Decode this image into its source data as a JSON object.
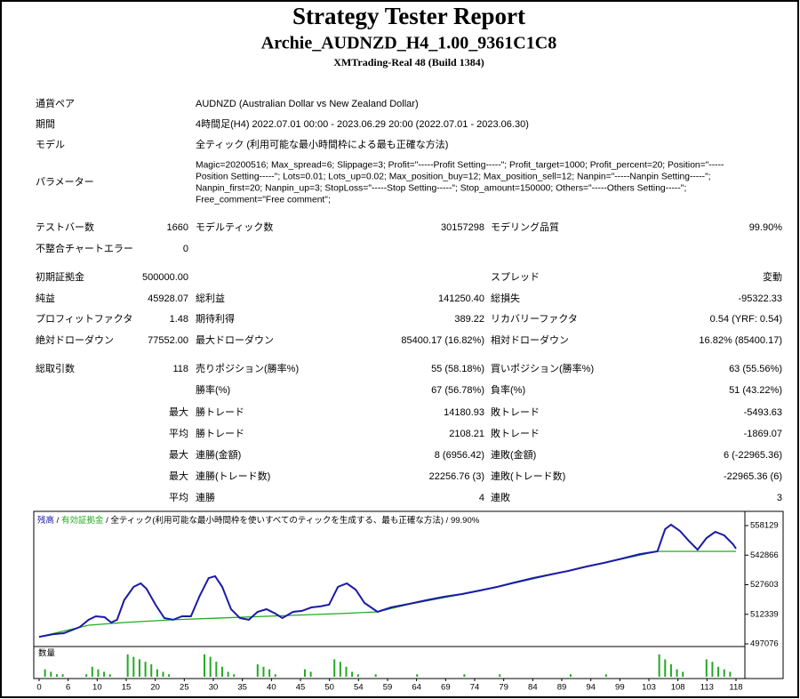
{
  "header": {
    "title": "Strategy Tester Report",
    "subtitle": "Archie_AUDNZD_H4_1.00_9361C1C8",
    "server": "XMTrading-Real 48 (Build 1384)"
  },
  "general": [
    {
      "label": "通貨ペア",
      "value": "AUDNZD (Australian Dollar vs New Zealand Dollar)"
    },
    {
      "label": "期間",
      "value": "4時間足(H4) 2022.07.01 00:00 - 2023.06.29 20:00 (2022.07.01 - 2023.06.30)"
    },
    {
      "label": "モデル",
      "value": "全ティック (利用可能な最小時間枠による最も正確な方法)"
    }
  ],
  "parameters": {
    "label": "パラメーター",
    "lines": [
      "Magic=20200516; Max_spread=6; Slippage=3; Profit=\"-----Profit Setting-----\"; Profit_target=1000; Profit_percent=20; Position=\"-----",
      "Position Setting-----\"; Lots=0.01; Lots_up=0.02; Max_position_buy=12; Max_position_sell=12; Nanpin=\"-----Nanpin Setting-----\";",
      "Nanpin_first=20; Nanpin_up=3; StopLoss=\"-----Stop Setting-----\"; Stop_amount=150000; Others=\"-----Others Setting-----\";",
      "Free_comment=\"Free comment\";"
    ]
  },
  "stats": {
    "rows": [
      {
        "c1": {
          "label": "テストバー数",
          "value": "1660"
        },
        "c2": {
          "label": "モデルティック数",
          "value": "30157298"
        },
        "c3": {
          "label": "モデリング品質",
          "value": "99.90%"
        }
      },
      {
        "c1": {
          "label": "不整合チャートエラー",
          "value": "0"
        }
      },
      {
        "c1": {
          "label": "初期証拠金",
          "value": "500000.00"
        },
        "c3": {
          "label": "スプレッド",
          "value": "変動"
        }
      },
      {
        "c1": {
          "label": "純益",
          "value": "45928.07"
        },
        "c2": {
          "label": "総利益",
          "value": "141250.40"
        },
        "c3": {
          "label": "総損失",
          "value": "-95322.33"
        }
      },
      {
        "c1": {
          "label": "プロフィットファクタ",
          "value": "1.48"
        },
        "c2": {
          "label": "期待利得",
          "value": "389.22"
        },
        "c3": {
          "label": "リカバリーファクタ",
          "value": "0.54 (YRF: 0.54)"
        }
      },
      {
        "c1": {
          "label": "絶対ドローダウン",
          "value": "77552.00"
        },
        "c2": {
          "label": "最大ドローダウン",
          "value": "85400.17 (16.82%)"
        },
        "c3": {
          "label": "相対ドローダウン",
          "value": "16.82% (85400.17)"
        }
      },
      {
        "c1": {
          "label": "総取引数",
          "value": "118"
        },
        "c2": {
          "label": "売りポジション(勝率%)",
          "value": "55 (58.18%)"
        },
        "c3": {
          "label": "買いポジション(勝率%)",
          "value": "63 (55.56%)"
        }
      },
      {
        "c2": {
          "label": "勝率(%)",
          "value": "67 (56.78%)"
        },
        "c3": {
          "label": "負率(%)",
          "value": "51 (43.22%)"
        }
      },
      {
        "c1": {
          "label": "最大"
        },
        "c2": {
          "label": "勝トレード",
          "value": "14180.93"
        },
        "c3": {
          "label": "敗トレード",
          "value": "-5493.63"
        }
      },
      {
        "c1": {
          "label": "平均"
        },
        "c2": {
          "label": "勝トレード",
          "value": "2108.21"
        },
        "c3": {
          "label": "敗トレード",
          "value": "-1869.07"
        }
      },
      {
        "c1": {
          "label": "最大"
        },
        "c2": {
          "label": "連勝(金額)",
          "value": "8 (6956.42)"
        },
        "c3": {
          "label": "連敗(金額)",
          "value": "6 (-22965.36)"
        }
      },
      {
        "c1": {
          "label": "最大"
        },
        "c2": {
          "label": "連勝(トレード数)",
          "value": "22256.76 (3)"
        },
        "c3": {
          "label": "連敗(トレード数)",
          "value": "-22965.36 (6)"
        }
      },
      {
        "c1": {
          "label": "平均"
        },
        "c2": {
          "label": "連勝",
          "value": "4"
        },
        "c3": {
          "label": "連敗",
          "value": "3"
        }
      }
    ]
  },
  "chart_data": {
    "type": "line",
    "separator": "/",
    "mode": "全ティック(利用可能な最小時間枠を使いすべてのティックを生成する、最も正確な方法)",
    "quality": "99.90%",
    "xlim": [
      0,
      118
    ],
    "ylim": [
      497076,
      564100
    ],
    "yticks": [
      558129,
      542866,
      527603,
      512339,
      497076
    ],
    "x_labels": [
      0,
      6,
      10,
      15,
      20,
      25,
      30,
      35,
      40,
      45,
      50,
      54,
      59,
      64,
      69,
      74,
      79,
      84,
      89,
      94,
      99,
      103,
      108,
      113,
      118
    ],
    "series": [
      {
        "name": "残高",
        "color": "#1a1aa6",
        "x": [
          0,
          2.4,
          4.2,
          6.9,
          8.4,
          9.6,
          11.1,
          12.2,
          13.2,
          14.4,
          16,
          17.2,
          18.2,
          19.7,
          21.2,
          22.7,
          24.2,
          25.7,
          27.2,
          28.7,
          29.8,
          31,
          32.5,
          34,
          35.5,
          37,
          38.5,
          40,
          41.2,
          43,
          44.5,
          46.1,
          47.6,
          49.1,
          50.6,
          52.1,
          53.6,
          55.1,
          57.3,
          59.6,
          62.6,
          65.6,
          68.6,
          71.6,
          74.6,
          77.6,
          80.6,
          83.6,
          86.6,
          89.6,
          92.7,
          95.7,
          98.7,
          101.7,
          104.7,
          106,
          107,
          108.5,
          110,
          111.5,
          113,
          114.5,
          116,
          117.5,
          118
        ],
        "values": [
          500700,
          502100,
          502600,
          505800,
          509500,
          511300,
          510850,
          508100,
          509500,
          519600,
          526500,
          528300,
          525500,
          517300,
          510400,
          509500,
          511300,
          511300,
          521900,
          531000,
          532000,
          526500,
          515000,
          510400,
          509500,
          513600,
          515000,
          512700,
          510400,
          513600,
          514100,
          515900,
          516400,
          517300,
          526500,
          528300,
          525100,
          518200,
          513600,
          515900,
          517700,
          519600,
          521400,
          522800,
          524600,
          526500,
          528800,
          531000,
          532900,
          534700,
          537000,
          538900,
          541100,
          543400,
          544800,
          556300,
          558600,
          555400,
          550300,
          545700,
          551700,
          554900,
          553100,
          548500,
          546200
        ]
      },
      {
        "name": "有効証拠金",
        "color": "#22aa22",
        "x": [
          0,
          8.4,
          14.4,
          22.7,
          38.5,
          50.6,
          57.3,
          62.6,
          74.6,
          86.6,
          98.7,
          104.7,
          118
        ],
        "values": [
          500700,
          506700,
          508100,
          509500,
          511300,
          512700,
          513600,
          517500,
          524400,
          532700,
          540900,
          544800,
          544800
        ]
      }
    ],
    "volume": {
      "label": "数量",
      "color": "#22aa22",
      "lim": [
        0,
        10
      ],
      "x": [
        1,
        2,
        3,
        4,
        8,
        9,
        10,
        11,
        12,
        15,
        16,
        17,
        18,
        19,
        20,
        21,
        22,
        28,
        29,
        30,
        31,
        32,
        33,
        37,
        38,
        39,
        40,
        45,
        46,
        50,
        51,
        52,
        53,
        54,
        57,
        64,
        72,
        78,
        90,
        96,
        105,
        106,
        107,
        108,
        109,
        113,
        114,
        115,
        116,
        117
      ],
      "values": [
        3,
        2,
        1,
        1,
        1,
        4,
        3,
        2,
        1,
        9,
        8,
        7,
        6,
        5,
        3,
        2,
        1,
        9,
        8,
        6,
        4,
        2,
        1,
        5,
        4,
        3,
        1,
        3,
        2,
        7,
        6,
        4,
        2,
        1,
        1,
        1,
        1,
        1,
        1,
        1,
        9,
        7,
        5,
        3,
        2,
        7,
        6,
        4,
        3,
        2
      ]
    }
  }
}
